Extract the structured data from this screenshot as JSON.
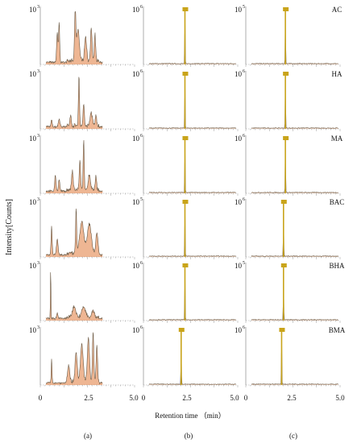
{
  "figure": {
    "ylabel": "Intensity[Counts]",
    "xlabel": "Retention time （min）",
    "column_labels": [
      "(a)",
      "(b)",
      "(c)"
    ],
    "row_labels": [
      "AC",
      "HA",
      "MA",
      "BAC",
      "BHA",
      "BMA"
    ],
    "x_ticks": [
      "0",
      "2.5",
      "5.0"
    ],
    "colors": {
      "trace": "#6b5a45",
      "fill": "#e07a3a",
      "peak": "#c9a41a",
      "axis": "#9a9a9a"
    }
  },
  "chart_data": [
    {
      "type": "line",
      "column": "(a)",
      "row": "AC",
      "y_exponent": "10^3",
      "xlim": [
        0,
        5.0
      ]
    },
    {
      "type": "line",
      "column": "(b)",
      "row": "AC",
      "y_exponent": "10^6",
      "xlim": [
        0,
        5.0
      ],
      "main_peak_rt": 2.2
    },
    {
      "type": "line",
      "column": "(c)",
      "row": "AC",
      "y_exponent": "10^5",
      "xlim": [
        0,
        5.0
      ],
      "main_peak_rt": 2.1
    },
    {
      "type": "line",
      "column": "(a)",
      "row": "HA",
      "y_exponent": "10^3",
      "xlim": [
        0,
        5.0
      ]
    },
    {
      "type": "line",
      "column": "(b)",
      "row": "HA",
      "y_exponent": "10^6",
      "xlim": [
        0,
        5.0
      ],
      "main_peak_rt": 2.2
    },
    {
      "type": "line",
      "column": "(c)",
      "row": "HA",
      "y_exponent": "10^6",
      "xlim": [
        0,
        5.0
      ],
      "main_peak_rt": 2.1
    },
    {
      "type": "line",
      "column": "(a)",
      "row": "MA",
      "y_exponent": "10^3",
      "xlim": [
        0,
        5.0
      ]
    },
    {
      "type": "line",
      "column": "(b)",
      "row": "MA",
      "y_exponent": "10^6",
      "xlim": [
        0,
        5.0
      ],
      "main_peak_rt": 2.2
    },
    {
      "type": "line",
      "column": "(c)",
      "row": "MA",
      "y_exponent": "10^6",
      "xlim": [
        0,
        5.0
      ],
      "main_peak_rt": 2.1
    },
    {
      "type": "line",
      "column": "(a)",
      "row": "BAC",
      "y_exponent": "10^3",
      "xlim": [
        0,
        5.0
      ]
    },
    {
      "type": "line",
      "column": "(b)",
      "row": "BAC",
      "y_exponent": "10^5",
      "xlim": [
        0,
        5.0
      ],
      "main_peak_rt": 2.2
    },
    {
      "type": "line",
      "column": "(c)",
      "row": "BAC",
      "y_exponent": "10^6",
      "xlim": [
        0,
        5.0
      ],
      "main_peak_rt": 2.0
    },
    {
      "type": "line",
      "column": "(a)",
      "row": "BHA",
      "y_exponent": "10^3",
      "xlim": [
        0,
        5.0
      ]
    },
    {
      "type": "line",
      "column": "(b)",
      "row": "BHA",
      "y_exponent": "10^6",
      "xlim": [
        0,
        5.0
      ],
      "main_peak_rt": 2.2
    },
    {
      "type": "line",
      "column": "(c)",
      "row": "BHA",
      "y_exponent": "10^5",
      "xlim": [
        0,
        5.0
      ],
      "main_peak_rt": 2.0
    },
    {
      "type": "line",
      "column": "(a)",
      "row": "BMA",
      "y_exponent": "10^3",
      "xlim": [
        0,
        5.0
      ]
    },
    {
      "type": "line",
      "column": "(b)",
      "row": "BMA",
      "y_exponent": "10^6",
      "xlim": [
        0,
        5.0
      ],
      "main_peak_rt": 2.0
    },
    {
      "type": "line",
      "column": "(c)",
      "row": "BMA",
      "y_exponent": "10^6",
      "xlim": [
        0,
        5.0
      ],
      "main_peak_rt": 1.9
    }
  ]
}
